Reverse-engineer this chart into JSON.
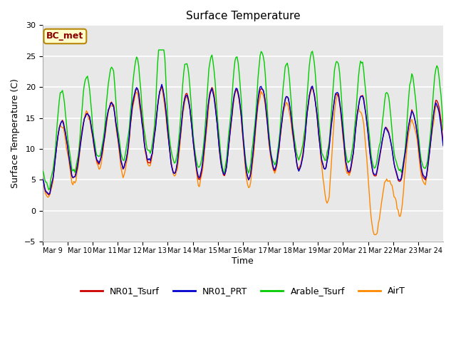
{
  "title": "Surface Temperature",
  "ylabel": "Surface Temperature (C)",
  "xlabel": "Time",
  "annotation": "BC_met",
  "ylim": [
    -5,
    30
  ],
  "yticks": [
    -5,
    0,
    5,
    10,
    15,
    20,
    25,
    30
  ],
  "x_tick_labels": [
    "Mar 9",
    "Mar 10",
    "Mar 11",
    "Mar 12",
    "Mar 13",
    "Mar 14",
    "Mar 15",
    "Mar 16",
    "Mar 17",
    "Mar 18",
    "Mar 19",
    "Mar 20",
    "Mar 21",
    "Mar 22",
    "Mar 23",
    "Mar 24"
  ],
  "series_colors": {
    "NR01_Tsurf": "#cc0000",
    "NR01_PRT": "#0000cc",
    "Arable_Tsurf": "#00cc00",
    "AirT": "#ff8800"
  },
  "bg_color": "#e8e8e8",
  "grid_color": "white",
  "title_fontsize": 11,
  "label_fontsize": 9,
  "tick_fontsize": 8,
  "legend_fontsize": 9
}
